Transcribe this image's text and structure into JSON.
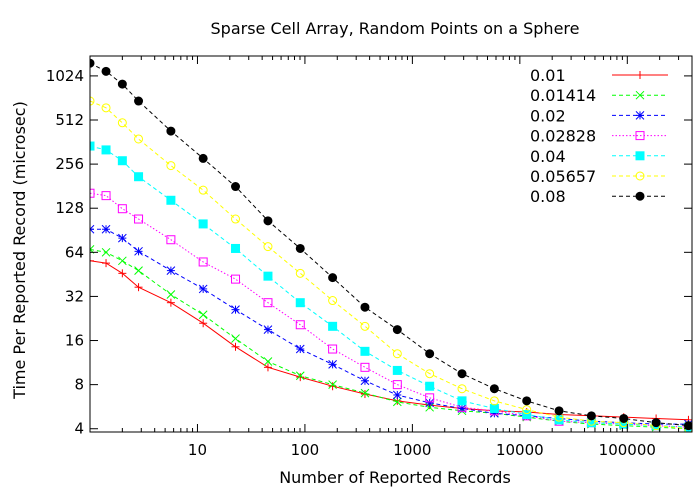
{
  "chart_data": {
    "type": "line",
    "title": "Sparse Cell Array, Random Points on a Sphere",
    "xlabel": "Number of Reported Records",
    "ylabel": "Time Per Reported Record (microsec)",
    "x_scale": "log",
    "y_scale": "log",
    "xlim": [
      1,
      400000
    ],
    "ylim": [
      3.8,
      1400
    ],
    "x_ticks": [
      10,
      100,
      1000,
      10000,
      100000
    ],
    "x_tick_labels": [
      "10",
      "100",
      "1000",
      "10000",
      "100000"
    ],
    "y_ticks": [
      4,
      8,
      16,
      32,
      64,
      128,
      256,
      512,
      1024
    ],
    "y_tick_labels": [
      "4",
      "8",
      "16",
      "32",
      "64",
      "128",
      "256",
      "512",
      "1024"
    ],
    "grid": false,
    "legend_position": "top-right",
    "series": [
      {
        "name": "0.01",
        "color": "#ff0000",
        "marker": "plus",
        "dash": "solid",
        "x": [
          1,
          1.41,
          2,
          2.83,
          5.66,
          11.3,
          22.6,
          45.3,
          90.5,
          181,
          362,
          724,
          1448,
          2896,
          5793,
          11585,
          23170,
          46341,
          92682,
          185364,
          370727
        ],
        "y": [
          56,
          54,
          46,
          37,
          29,
          21,
          14.5,
          10.5,
          9.0,
          7.8,
          6.9,
          6.2,
          5.8,
          5.5,
          5.3,
          5.2,
          5.0,
          4.9,
          4.8,
          4.7,
          4.6
        ]
      },
      {
        "name": "0.01414",
        "color": "#00ff00",
        "marker": "x",
        "dash": "dashed",
        "x": [
          1,
          1.41,
          2,
          2.83,
          5.66,
          11.3,
          22.6,
          45.3,
          90.5,
          181,
          362,
          724,
          1448,
          2896,
          5793,
          11585,
          23170,
          46341,
          92682,
          185364,
          370727
        ],
        "y": [
          67,
          64,
          56,
          48,
          33,
          24,
          16.5,
          11.5,
          9.2,
          8.0,
          7.0,
          6.1,
          5.6,
          5.3,
          5.1,
          4.8,
          4.5,
          4.3,
          4.2,
          4.1,
          4.0
        ]
      },
      {
        "name": "0.02",
        "color": "#0000ff",
        "marker": "star",
        "dash": "dashed",
        "x": [
          1,
          1.41,
          2,
          2.83,
          5.66,
          11.3,
          22.6,
          45.3,
          90.5,
          181,
          362,
          724,
          1448,
          2896,
          5793,
          11585,
          23170,
          46341,
          92682,
          185364,
          370727
        ],
        "y": [
          92,
          92,
          80,
          65,
          48,
          36,
          26,
          19,
          14,
          11,
          8.5,
          6.8,
          6.0,
          5.5,
          5.1,
          4.9,
          4.7,
          4.5,
          4.4,
          4.3,
          4.3
        ]
      },
      {
        "name": "0.02828",
        "color": "#ff00ff",
        "marker": "square-open",
        "dash": "dotted",
        "x": [
          1,
          1.41,
          2,
          2.83,
          5.66,
          11.3,
          22.6,
          45.3,
          90.5,
          181,
          362,
          724,
          1448,
          2896,
          5793,
          11585,
          23170,
          46341,
          92682,
          185364,
          370727
        ],
        "y": [
          162,
          156,
          127,
          108,
          78,
          55,
          42,
          29,
          20.5,
          14,
          10.5,
          8.0,
          6.5,
          5.6,
          5.3,
          4.9,
          4.5,
          4.4,
          4.3,
          4.2,
          4.1
        ]
      },
      {
        "name": "0.04",
        "color": "#00ffff",
        "marker": "square-filled",
        "dash": "dashed",
        "x": [
          1,
          1.41,
          2,
          2.83,
          5.66,
          11.3,
          22.6,
          45.3,
          90.5,
          181,
          362,
          724,
          1448,
          2896,
          5793,
          11585,
          23170,
          46341,
          92682,
          185364,
          370727
        ],
        "y": [
          340,
          320,
          270,
          210,
          145,
          100,
          68,
          44,
          29,
          20,
          13.5,
          10,
          7.8,
          6.2,
          5.5,
          5.0,
          4.6,
          4.4,
          4.3,
          4.2,
          4.1
        ]
      },
      {
        "name": "0.05657",
        "color": "#ffff00",
        "marker": "circle-open",
        "dash": "dashed",
        "x": [
          1,
          1.41,
          2,
          2.83,
          5.66,
          11.3,
          22.6,
          45.3,
          90.5,
          181,
          362,
          724,
          1448,
          2896,
          5793,
          11585,
          23170,
          46341,
          92682,
          185364,
          370727
        ],
        "y": [
          690,
          620,
          490,
          380,
          250,
          170,
          108,
          70,
          46,
          30,
          20,
          13,
          9.5,
          7.5,
          6.2,
          5.4,
          4.8,
          4.5,
          4.4,
          4.2,
          4.0
        ]
      },
      {
        "name": "0.08",
        "color": "#000000",
        "marker": "circle-filled",
        "dash": "dashed",
        "x": [
          1,
          1.41,
          2,
          2.83,
          5.66,
          11.3,
          22.6,
          45.3,
          90.5,
          181,
          362,
          724,
          1448,
          2896,
          5793,
          11585,
          23170,
          46341,
          92682,
          185364,
          370727
        ],
        "y": [
          1250,
          1100,
          900,
          690,
          430,
          280,
          180,
          105,
          68,
          43,
          27,
          19,
          13,
          9.5,
          7.5,
          6.2,
          5.3,
          4.9,
          4.7,
          4.4,
          4.2
        ]
      }
    ]
  }
}
